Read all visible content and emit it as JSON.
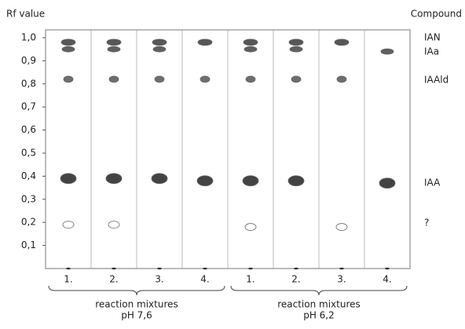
{
  "chart_data": {
    "type": "tlc",
    "y_label": "Rf value",
    "legend_title": "Compound",
    "ylim": [
      0,
      1.0
    ],
    "yticks": [
      {
        "value": 1.0,
        "label": "1,0"
      },
      {
        "value": 0.9,
        "label": "0,9"
      },
      {
        "value": 0.8,
        "label": "0,8"
      },
      {
        "value": 0.7,
        "label": "0,7"
      },
      {
        "value": 0.6,
        "label": "0,6"
      },
      {
        "value": 0.5,
        "label": "0,5"
      },
      {
        "value": 0.4,
        "label": "0,4"
      },
      {
        "value": 0.3,
        "label": "0,3"
      },
      {
        "value": 0.2,
        "label": "0,2"
      },
      {
        "value": 0.1,
        "label": "0,1"
      }
    ],
    "categories": [
      "1.",
      "2.",
      "3.",
      "4.",
      "1.",
      "2.",
      "3.",
      "4."
    ],
    "groups": [
      [
        "reaction mixtures",
        "pH 7,6"
      ],
      [
        "reaction mixtures",
        "pH 6,2"
      ]
    ],
    "series": [
      {
        "name": "IAN",
        "color": "#3a3a3a",
        "values": [
          0.98,
          0.98,
          0.98,
          0.98,
          0.98,
          0.98,
          0.98,
          null
        ]
      },
      {
        "name": "IAa",
        "color": "#444444",
        "values": [
          0.95,
          0.95,
          0.95,
          null,
          0.95,
          0.95,
          null,
          0.94
        ]
      },
      {
        "name": "IAAld",
        "color": "#555555",
        "values": [
          0.82,
          0.82,
          0.82,
          0.82,
          0.82,
          0.82,
          0.82,
          null
        ]
      },
      {
        "name": "IAA",
        "color": "#222222",
        "values": [
          0.39,
          0.39,
          0.39,
          0.38,
          0.38,
          0.38,
          null,
          0.37
        ]
      },
      {
        "name": "?",
        "color": "#ffffff",
        "values": [
          0.19,
          0.19,
          null,
          null,
          0.18,
          null,
          0.18,
          null
        ]
      }
    ]
  }
}
